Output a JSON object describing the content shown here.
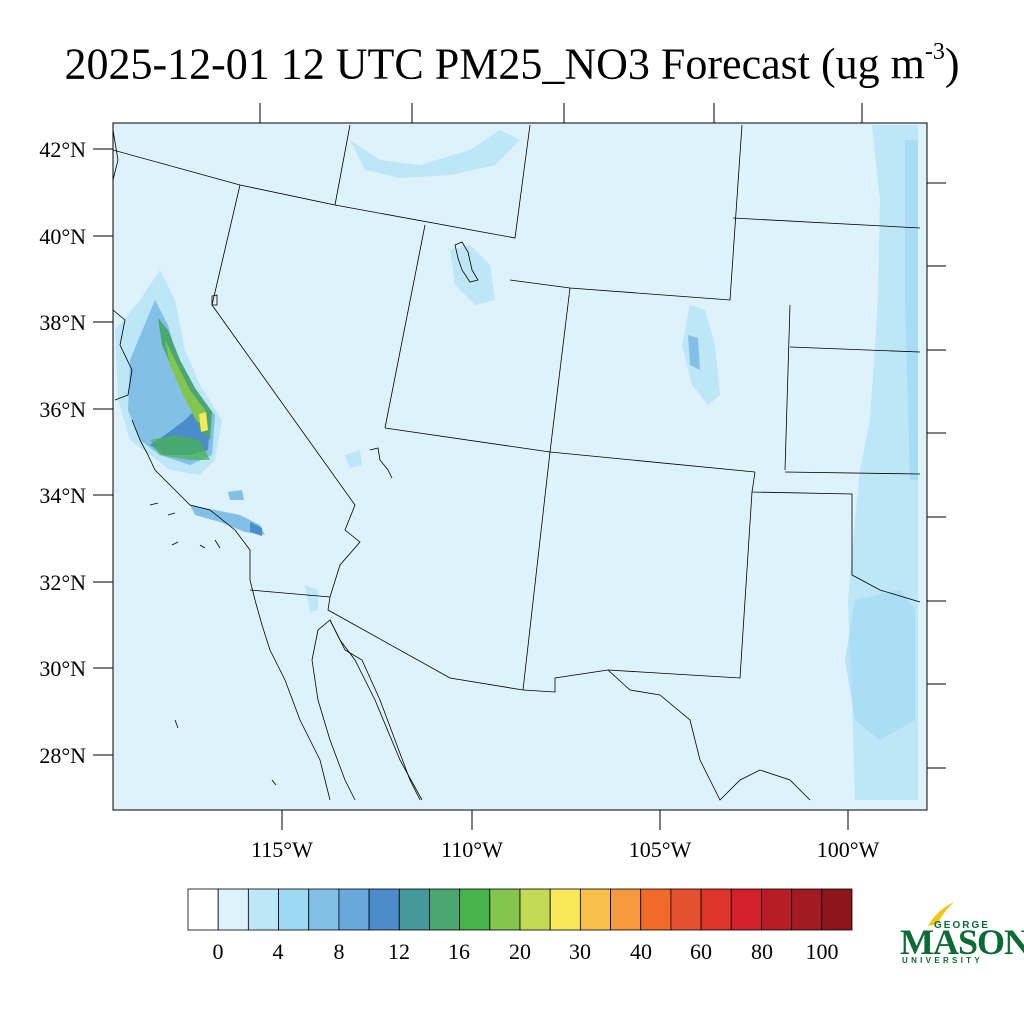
{
  "title": {
    "main": "2025-12-01 12 UTC PM25_NO3 Forecast (ug m",
    "exponent": "-3",
    "close": ")"
  },
  "map": {
    "lat_labels": [
      "42°N",
      "40°N",
      "38°N",
      "36°N",
      "34°N",
      "32°N",
      "30°N",
      "28°N"
    ],
    "lon_labels": [
      "115°W",
      "110°W",
      "105°W",
      "100°W"
    ],
    "background_color": "#def2fb",
    "line_color": "#000000"
  },
  "colorbar": {
    "colors": [
      "#ffffff",
      "#def2fb",
      "#bde6f7",
      "#9dd8f4",
      "#82c0e8",
      "#69a8dd",
      "#4a8ccc",
      "#44999a",
      "#4aa772",
      "#46b44a",
      "#84c54f",
      "#c3da55",
      "#f8e95a",
      "#f7c04b",
      "#f59a3e",
      "#f26b2b",
      "#e55030",
      "#de3429",
      "#d4202a",
      "#b81d26",
      "#a21a22",
      "#8e161b"
    ],
    "tick_labels": [
      "0",
      "4",
      "8",
      "12",
      "16",
      "20",
      "30",
      "40",
      "60",
      "80",
      "100"
    ]
  },
  "logo": {
    "line1": "GEORGE",
    "line2": "MASON",
    "line3": "UNIVERSITY",
    "color": "#0b6b35",
    "accent": "#f2c516"
  }
}
